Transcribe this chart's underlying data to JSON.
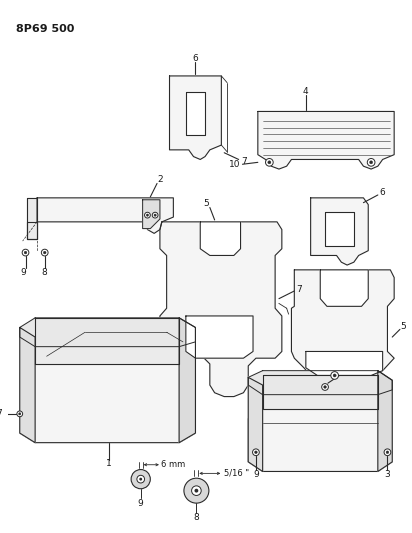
{
  "title": "8P69 500",
  "background_color": "#ffffff",
  "line_color": "#2a2a2a",
  "fig_width": 4.12,
  "fig_height": 5.33,
  "dpi": 100
}
